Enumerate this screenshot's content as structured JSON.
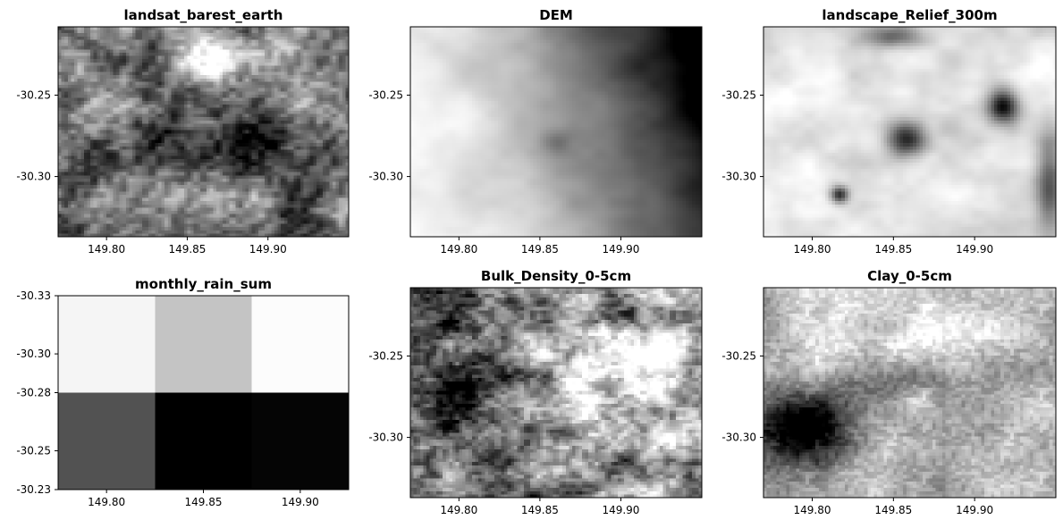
{
  "chart_data": [
    {
      "type": "heatmap",
      "title": "landsat_barest_earth",
      "colormap": "gray",
      "xticks": [
        "149.80",
        "149.85",
        "149.90"
      ],
      "yticks": [
        "-30.25",
        "-30.30"
      ],
      "xlim": [
        149.77,
        149.95
      ],
      "ylim": [
        -30.337,
        -30.208
      ],
      "xtick_values": [
        149.8,
        149.85,
        149.9
      ],
      "ytick_values": [
        -30.25,
        -30.3
      ],
      "texture": "landsat"
    },
    {
      "type": "heatmap",
      "title": "DEM",
      "colormap": "gray",
      "xticks": [
        "149.80",
        "149.85",
        "149.90"
      ],
      "yticks": [
        "-30.25",
        "-30.30"
      ],
      "xlim": [
        149.77,
        149.95
      ],
      "ylim": [
        -30.337,
        -30.208
      ],
      "xtick_values": [
        149.8,
        149.85,
        149.9
      ],
      "ytick_values": [
        -30.25,
        -30.3
      ],
      "texture": "dem"
    },
    {
      "type": "heatmap",
      "title": "landscape_Relief_300m",
      "colormap": "gray",
      "xticks": [
        "149.80",
        "149.85",
        "149.90"
      ],
      "yticks": [
        "-30.25",
        "-30.30"
      ],
      "xlim": [
        149.77,
        149.95
      ],
      "ylim": [
        -30.337,
        -30.208
      ],
      "xtick_values": [
        149.8,
        149.85,
        149.9
      ],
      "ytick_values": [
        -30.25,
        -30.3
      ],
      "texture": "relief"
    },
    {
      "type": "heatmap",
      "title": "monthly_rain_sum",
      "colormap": "gray",
      "xticks": [
        "149.80",
        "149.85",
        "149.90"
      ],
      "yticks": [
        "-30.33",
        "-30.30",
        "-30.28",
        "-30.25",
        "-30.23"
      ],
      "grid_values": [
        [
          0.96,
          0.77,
          0.99
        ],
        [
          0.32,
          0.0,
          0.02
        ]
      ],
      "xlim": [
        149.775,
        149.925
      ],
      "ylim": [
        -30.23,
        -30.33
      ],
      "xtick_values": [
        149.8,
        149.85,
        149.9
      ],
      "ytick_values": [
        -30.33,
        -30.3,
        -30.28,
        -30.25,
        -30.23
      ],
      "texture": "grid"
    },
    {
      "type": "heatmap",
      "title": "Bulk_Density_0-5cm",
      "colormap": "gray",
      "xticks": [
        "149.80",
        "149.85",
        "149.90"
      ],
      "yticks": [
        "-30.25",
        "-30.30"
      ],
      "xlim": [
        149.77,
        149.95
      ],
      "ylim": [
        -30.337,
        -30.208
      ],
      "xtick_values": [
        149.8,
        149.85,
        149.9
      ],
      "ytick_values": [
        -30.25,
        -30.3
      ],
      "texture": "bulk"
    },
    {
      "type": "heatmap",
      "title": "Clay_0-5cm",
      "colormap": "gray",
      "xticks": [
        "149.80",
        "149.85",
        "149.90"
      ],
      "yticks": [
        "-30.25",
        "-30.30"
      ],
      "xlim": [
        149.77,
        149.95
      ],
      "ylim": [
        -30.337,
        -30.208
      ],
      "xtick_values": [
        149.8,
        149.85,
        149.9
      ],
      "ytick_values": [
        -30.25,
        -30.3
      ],
      "texture": "clay"
    }
  ]
}
